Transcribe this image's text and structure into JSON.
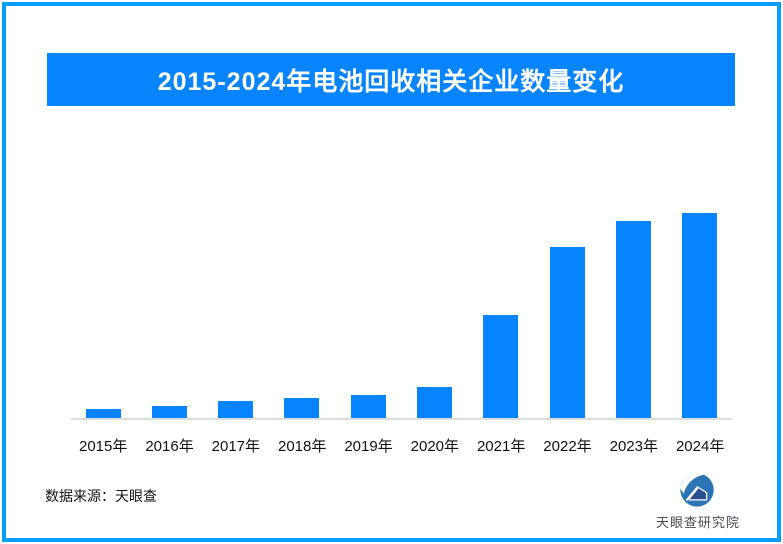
{
  "banner": {
    "title": "2015-2024年电池回收相关企业数量变化"
  },
  "chart_data": {
    "type": "bar",
    "title": "2015-2024年电池回收相关企业数量变化",
    "categories": [
      "2015年",
      "2016年",
      "2017年",
      "2018年",
      "2019年",
      "2020年",
      "2021年",
      "2022年",
      "2023年",
      "2024年"
    ],
    "values": [
      4.6,
      6.1,
      8.3,
      9.7,
      11.0,
      15.1,
      50.2,
      83.3,
      96.3,
      100
    ],
    "xlabel": "",
    "ylabel": "",
    "ylim": [
      0,
      100
    ],
    "grid": false,
    "legend": "none",
    "bar_color": "#0884ff",
    "note": "no y-axis or data labels shown in chart; values are relative bar heights normalized to 2024 = 100"
  },
  "footer": {
    "source_label": "数据来源：天眼查"
  },
  "logo": {
    "label": "天眼查研究院",
    "icon": "tianyancha-eye-logo"
  },
  "colors": {
    "accent_blue": "#0884ff",
    "frame_blue": "#099ef6",
    "axis_line": "#dddddd",
    "label_text": "#111213",
    "logo_text": "#4b4b52",
    "logo_circle_blue": "#2b74b6",
    "logo_house_blue": "#2b4e8c"
  }
}
